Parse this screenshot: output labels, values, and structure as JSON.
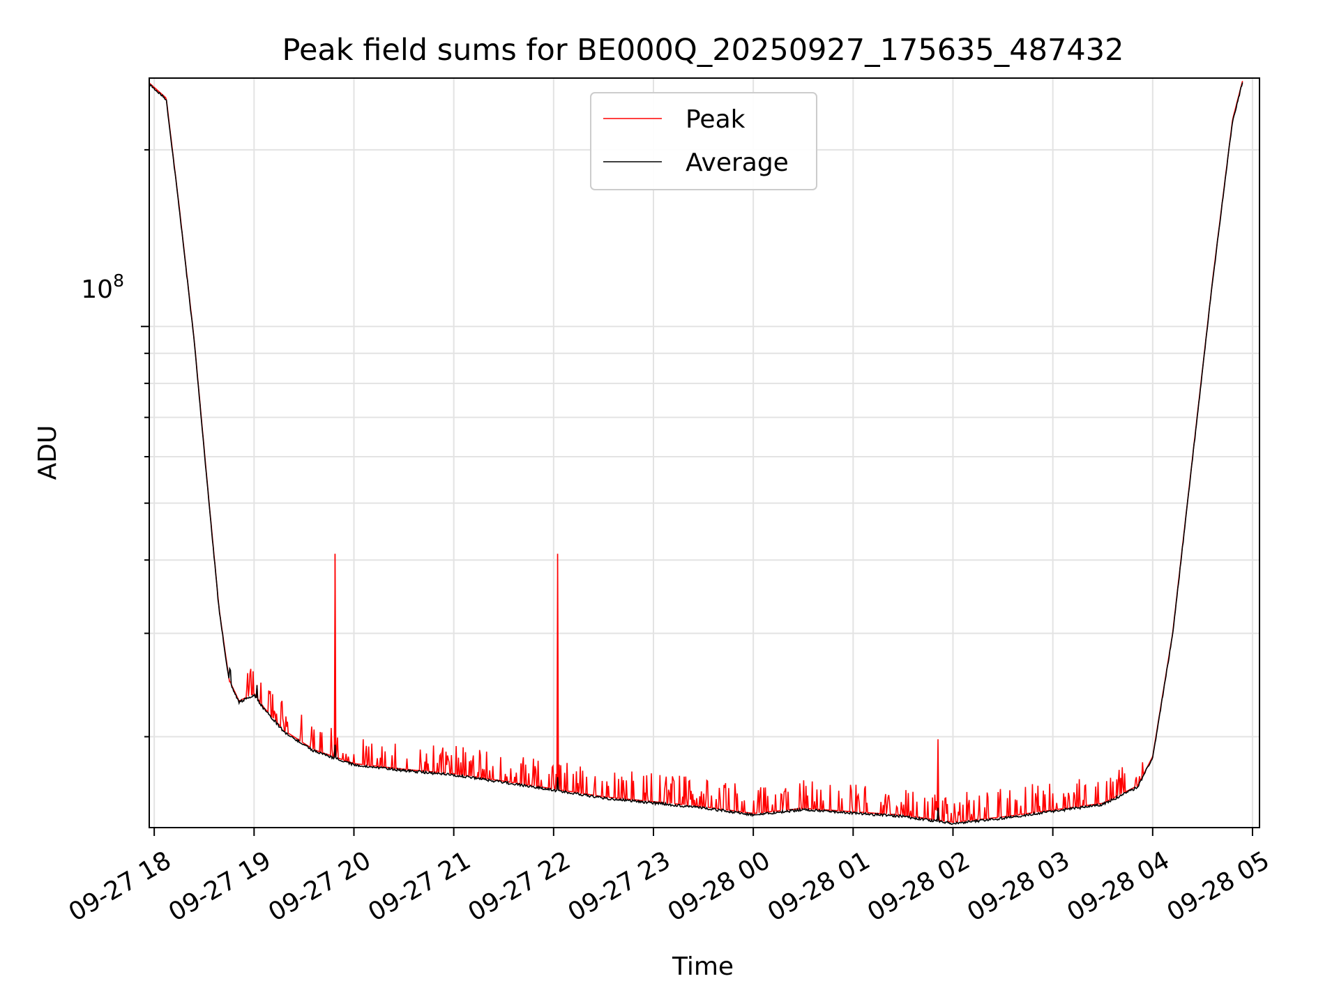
{
  "chart_data": {
    "type": "line",
    "title": "Peak field sums for BE000Q_20250927_175635_487432",
    "xlabel": "Time",
    "ylabel": "ADU",
    "yscale": "log",
    "ylim": [
      14000000,
      265000000
    ],
    "xlim_hours": [
      -0.05,
      11.07
    ],
    "grid": true,
    "legend_position": "upper center",
    "x_tick_labels": [
      "09-27 18",
      "09-27 19",
      "09-27 20",
      "09-27 21",
      "09-27 22",
      "09-27 23",
      "09-28 00",
      "09-28 01",
      "09-28 02",
      "09-28 03",
      "09-28 04",
      "09-28 05"
    ],
    "x_tick_hours": [
      0,
      1,
      2,
      3,
      4,
      5,
      6,
      7,
      8,
      9,
      10,
      11
    ],
    "y_major_tick": {
      "value": 100000000,
      "label_base": "10",
      "label_exp": "8"
    },
    "y_minor_ticks": [
      20000000,
      30000000,
      40000000,
      50000000,
      60000000,
      70000000,
      80000000,
      90000000,
      200000000
    ],
    "x_start": "2025-09-27 17:56:35",
    "series": [
      {
        "name": "Peak",
        "color": "#ff0000",
        "note": "Average plus sparse upward spikes",
        "spikes": [
          {
            "t": 1.81,
            "value": 41000000
          },
          {
            "t": 4.04,
            "value": 41000000
          },
          {
            "t": 7.85,
            "value": 19800000
          },
          {
            "t": 1.03,
            "value": 24500000
          },
          {
            "t": 0.76,
            "value": 24800000
          }
        ]
      },
      {
        "name": "Average",
        "color": "#000000",
        "points": [
          {
            "t": -0.05,
            "value": 260000000
          },
          {
            "t": 0.12,
            "value": 245000000
          },
          {
            "t": 0.25,
            "value": 160000000
          },
          {
            "t": 0.4,
            "value": 95000000
          },
          {
            "t": 0.55,
            "value": 50000000
          },
          {
            "t": 0.65,
            "value": 33000000
          },
          {
            "t": 0.75,
            "value": 25000000
          },
          {
            "t": 0.85,
            "value": 23000000
          },
          {
            "t": 1.0,
            "value": 23700000
          },
          {
            "t": 1.1,
            "value": 22400000
          },
          {
            "t": 1.3,
            "value": 20500000
          },
          {
            "t": 1.6,
            "value": 19000000
          },
          {
            "t": 2.0,
            "value": 18000000
          },
          {
            "t": 2.5,
            "value": 17600000
          },
          {
            "t": 3.0,
            "value": 17300000
          },
          {
            "t": 3.5,
            "value": 16800000
          },
          {
            "t": 4.0,
            "value": 16300000
          },
          {
            "t": 4.5,
            "value": 15800000
          },
          {
            "t": 5.0,
            "value": 15500000
          },
          {
            "t": 5.5,
            "value": 15200000
          },
          {
            "t": 6.0,
            "value": 14800000
          },
          {
            "t": 6.5,
            "value": 15100000
          },
          {
            "t": 7.0,
            "value": 14900000
          },
          {
            "t": 7.5,
            "value": 14700000
          },
          {
            "t": 8.0,
            "value": 14300000
          },
          {
            "t": 8.5,
            "value": 14600000
          },
          {
            "t": 9.0,
            "value": 15000000
          },
          {
            "t": 9.5,
            "value": 15400000
          },
          {
            "t": 9.85,
            "value": 16500000
          },
          {
            "t": 10.0,
            "value": 18500000
          },
          {
            "t": 10.2,
            "value": 30000000
          },
          {
            "t": 10.4,
            "value": 60000000
          },
          {
            "t": 10.6,
            "value": 120000000
          },
          {
            "t": 10.8,
            "value": 225000000
          },
          {
            "t": 10.9,
            "value": 262000000
          }
        ]
      }
    ]
  }
}
